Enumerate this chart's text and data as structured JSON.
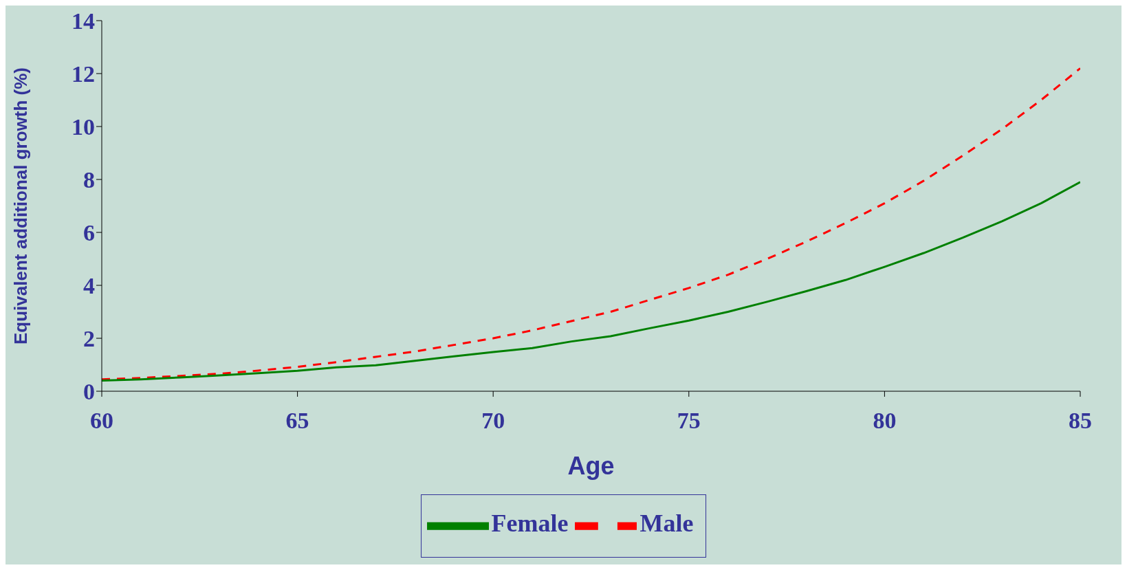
{
  "chart_data": {
    "type": "line",
    "xlabel": "Age",
    "ylabel": "Equivalent additional growth (%)",
    "x": [
      60,
      61,
      62,
      63,
      64,
      65,
      66,
      67,
      68,
      69,
      70,
      71,
      72,
      73,
      74,
      75,
      76,
      77,
      78,
      79,
      80,
      81,
      82,
      83,
      84,
      85
    ],
    "series": [
      {
        "name": "Male",
        "color": "#ff0000",
        "line_style": "dashed",
        "values": [
          0.45,
          0.5,
          0.58,
          0.66,
          0.78,
          0.92,
          1.1,
          1.3,
          1.5,
          1.75,
          2.0,
          2.3,
          2.65,
          3.0,
          3.45,
          3.9,
          4.4,
          5.0,
          5.65,
          6.35,
          7.1,
          7.95,
          8.9,
          9.9,
          11.0,
          12.2
        ]
      },
      {
        "name": "Female",
        "color": "#008000",
        "line_style": "solid",
        "values": [
          0.4,
          0.45,
          0.52,
          0.6,
          0.68,
          0.77,
          0.9,
          0.98,
          1.15,
          1.32,
          1.48,
          1.63,
          1.88,
          2.08,
          2.38,
          2.67,
          3.0,
          3.38,
          3.78,
          4.2,
          4.7,
          5.22,
          5.8,
          6.42,
          7.1,
          7.9
        ]
      }
    ],
    "xlim": [
      60,
      85
    ],
    "xticks": [
      60,
      65,
      70,
      75,
      80,
      85
    ],
    "ylim": [
      0,
      14
    ],
    "yticks": [
      0,
      2,
      4,
      6,
      8,
      10,
      12,
      14
    ],
    "grid": false,
    "legend": "bottom",
    "marker": "none"
  }
}
